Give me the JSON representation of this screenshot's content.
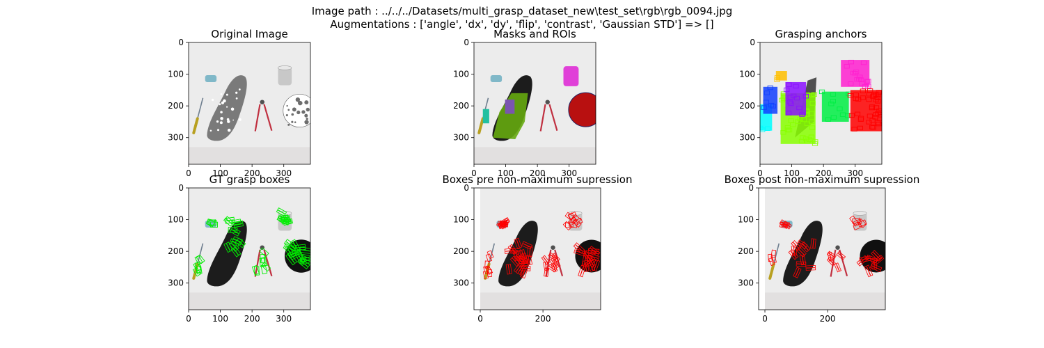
{
  "figure": {
    "title_line1": "Image path : ../../../Datasets/multi_grasp_dataset_new\\test_set\\rgb\\rgb_0094.jpg",
    "title_line2": "Augmentations : ['angle', 'dx', 'dy', 'flip', 'contrast', 'Gaussian STD'] => []"
  },
  "colors": {
    "background": "#ececec",
    "shoe_gray": "#7a7a7a",
    "shoe_black": "#1c1c1c",
    "mask_green": "#66aa10",
    "mask_purple": "#7a55b0",
    "cup_magenta": "#e040d8",
    "bowl_red": "#b81010",
    "gt_box": "#00ee00",
    "pred_box": "#ff0000",
    "anchor_blue": "#1040ff",
    "anchor_violet": "#8a10ff",
    "anchor_lime": "#88ff00",
    "anchor_green": "#00ee44",
    "anchor_red": "#ff0000",
    "anchor_magenta": "#ff20d0",
    "anchor_yellow": "#ffc000",
    "anchor_cyan": "#00ffff"
  },
  "chart_data": [
    {
      "type": "image",
      "title": "Original Image",
      "scene": "original",
      "xlim": [
        0,
        384
      ],
      "ylim": [
        384,
        0
      ],
      "xticks": [
        0,
        100,
        200,
        300
      ],
      "yticks": [
        0,
        100,
        200,
        300
      ]
    },
    {
      "type": "image",
      "title": "Masks and ROIs",
      "scene": "masks",
      "xlim": [
        0,
        384
      ],
      "ylim": [
        384,
        0
      ],
      "xticks": [
        0,
        100,
        200,
        300
      ],
      "yticks": [
        0,
        100,
        200,
        300
      ]
    },
    {
      "type": "image",
      "title": "Grasping anchors",
      "scene": "anchors",
      "xlim": [
        0,
        384
      ],
      "ylim": [
        384,
        0
      ],
      "xticks": [
        0,
        100,
        200,
        300
      ],
      "yticks": [
        0,
        100,
        200,
        300
      ]
    },
    {
      "type": "image",
      "title": "GT grasp boxes",
      "scene": "gt",
      "xlim": [
        0,
        384
      ],
      "ylim": [
        384,
        0
      ],
      "xticks": [
        0,
        100,
        200,
        300
      ],
      "yticks": [
        0,
        100,
        200,
        300
      ]
    },
    {
      "type": "image",
      "title": "Boxes pre non-maximum supression",
      "scene": "pre",
      "xlim": [
        -20,
        384
      ],
      "ylim": [
        384,
        0
      ],
      "xticks": [
        0,
        200
      ],
      "yticks": [
        0,
        100,
        200,
        300
      ]
    },
    {
      "type": "image",
      "title": "Boxes post non-maximum supression",
      "scene": "post",
      "xlim": [
        -20,
        384
      ],
      "ylim": [
        384,
        0
      ],
      "xticks": [
        0,
        200
      ],
      "yticks": [
        0,
        100,
        200,
        300
      ]
    }
  ]
}
